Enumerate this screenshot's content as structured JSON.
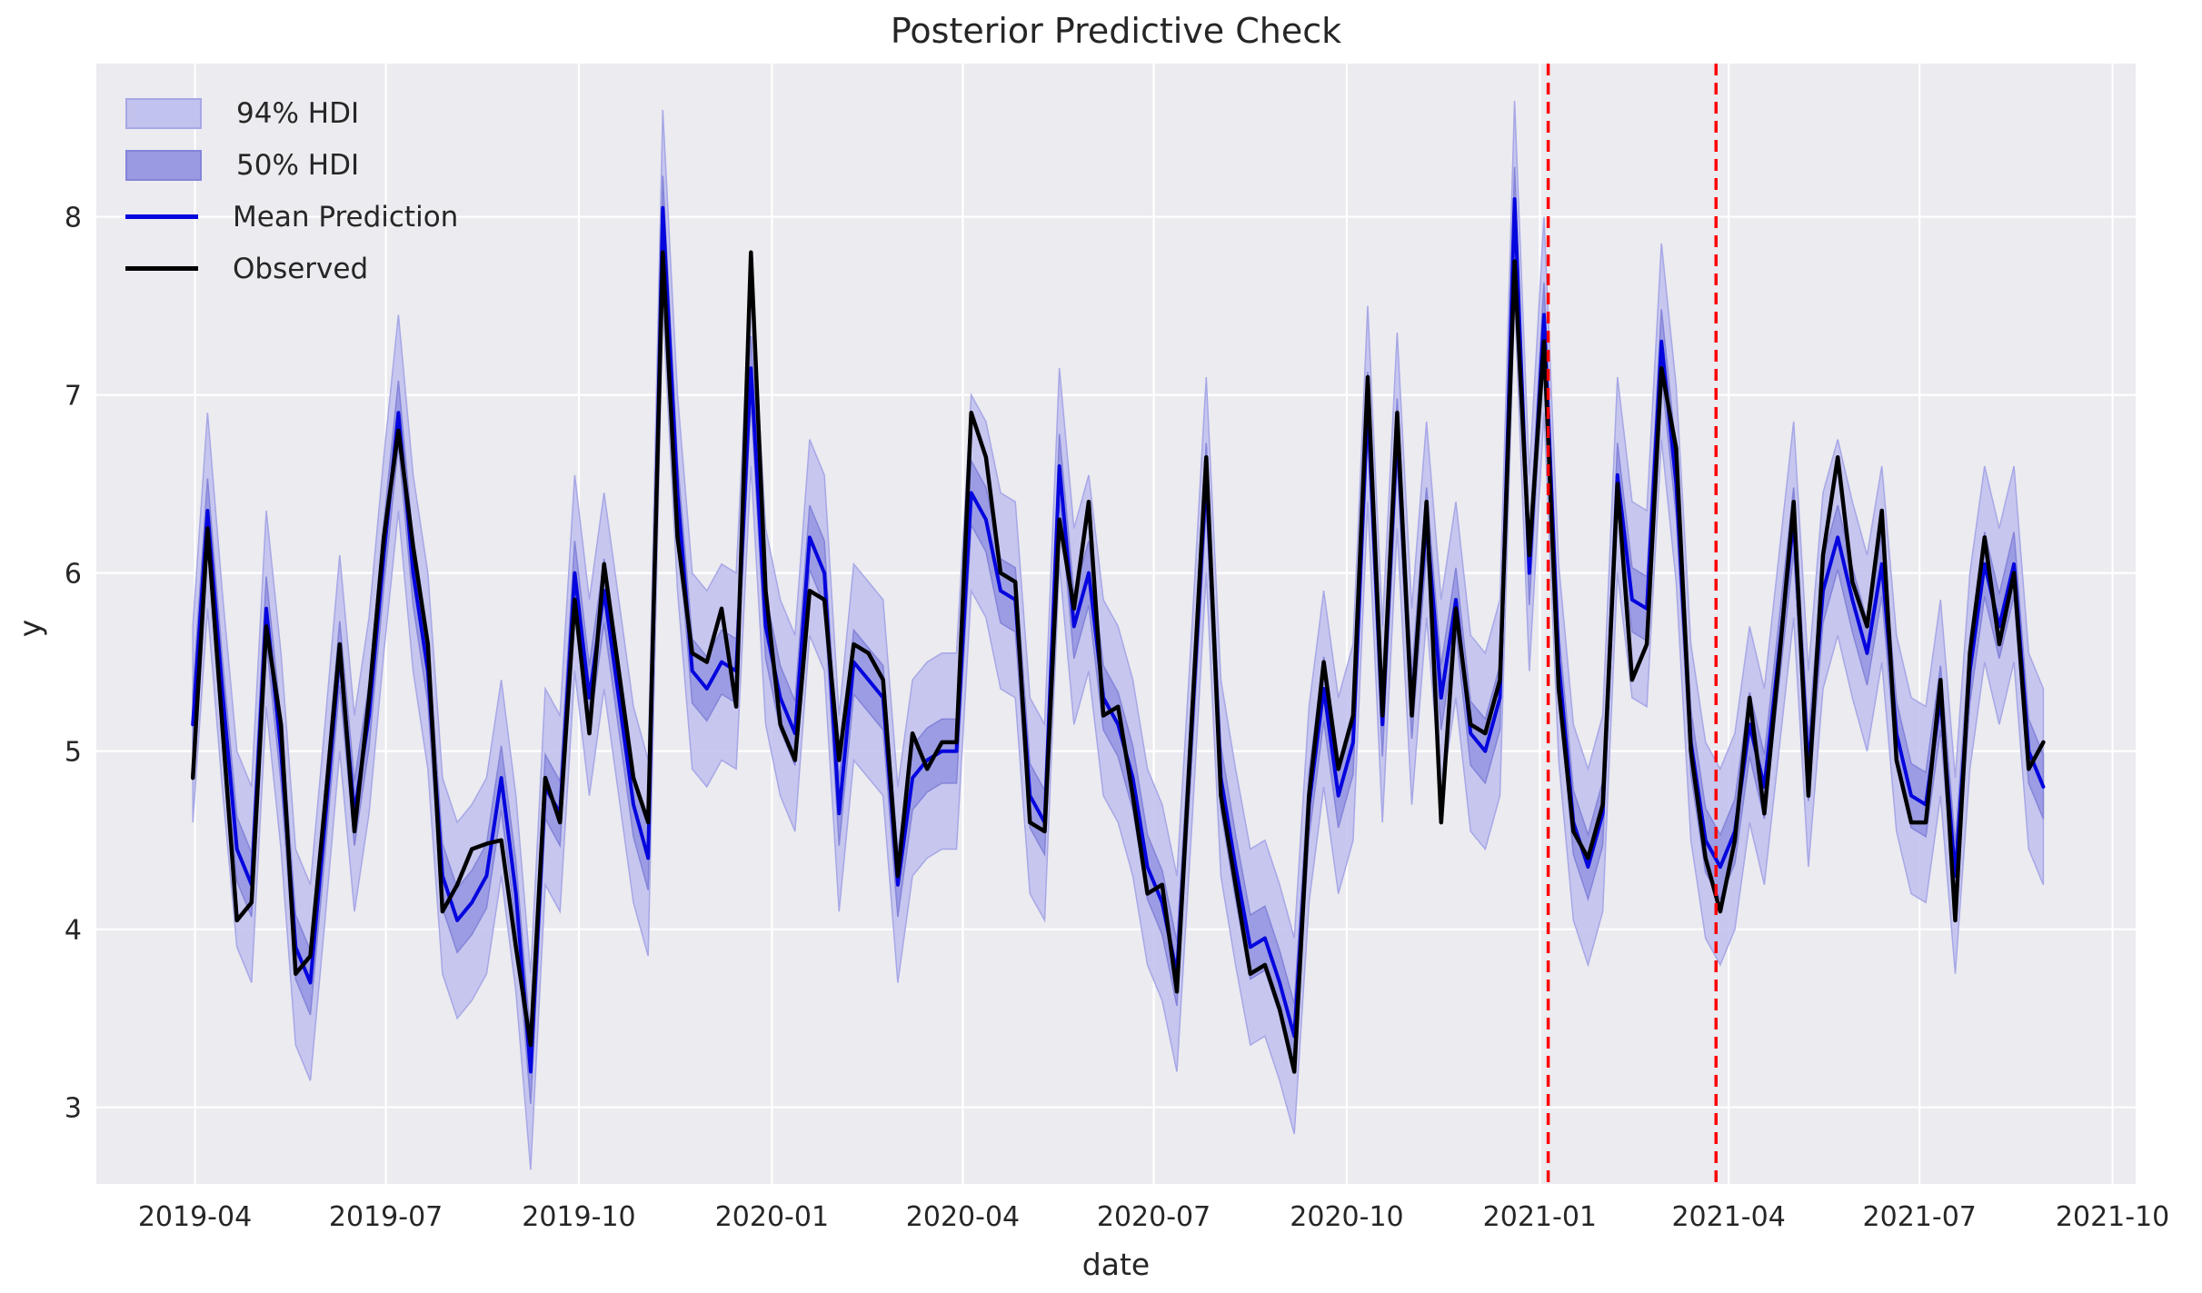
{
  "figure": {
    "title": "Posterior Predictive Check",
    "xlabel": "date",
    "ylabel": "y"
  },
  "colors": {
    "axes_background": "#ebebf0",
    "grid": "#ffffff",
    "hdi94_fill": "#c2c2ee",
    "hdi94_edge": "#a7a7e6",
    "hdi50_fill": "#9a9ae3",
    "hdi50_edge": "#8484d9",
    "mean_line": "#0505dd",
    "observed_line": "#000000",
    "vline": "#ff0000",
    "text": "#262626"
  },
  "legend": {
    "items": [
      {
        "label": "94% HDI",
        "swatch": "patch",
        "color_key": "hdi94_fill",
        "edge_key": "hdi94_edge"
      },
      {
        "label": "50% HDI",
        "swatch": "patch",
        "color_key": "hdi50_fill",
        "edge_key": "hdi50_edge"
      },
      {
        "label": "Mean Prediction",
        "swatch": "line",
        "color_key": "mean_line"
      },
      {
        "label": "Observed",
        "swatch": "line",
        "color_key": "observed_line"
      }
    ]
  },
  "chart_data": {
    "type": "line",
    "title": "Posterior Predictive Check",
    "xlabel": "date",
    "ylabel": "y",
    "xlim": [
      "2019-02-13",
      "2021-10-12"
    ],
    "ylim": [
      2.57,
      8.86
    ],
    "grid": true,
    "legend_position": "upper left",
    "x_ticks": [
      {
        "date": "2019-04-01",
        "label": "2019-04"
      },
      {
        "date": "2019-07-01",
        "label": "2019-07"
      },
      {
        "date": "2019-10-01",
        "label": "2019-10"
      },
      {
        "date": "2020-01-01",
        "label": "2020-01"
      },
      {
        "date": "2020-04-01",
        "label": "2020-04"
      },
      {
        "date": "2020-07-01",
        "label": "2020-07"
      },
      {
        "date": "2020-10-01",
        "label": "2020-10"
      },
      {
        "date": "2021-01-01",
        "label": "2021-01"
      },
      {
        "date": "2021-04-01",
        "label": "2021-04"
      },
      {
        "date": "2021-07-01",
        "label": "2021-07"
      },
      {
        "date": "2021-10-01",
        "label": "2021-10"
      }
    ],
    "y_ticks": [
      3,
      4,
      5,
      6,
      7,
      8
    ],
    "hdi94_halfwidth": 0.55,
    "hdi50_halfwidth": 0.18,
    "vlines": [
      {
        "date": "2021-01-05",
        "style": "dashed"
      },
      {
        "date": "2021-03-26",
        "style": "dashed"
      }
    ],
    "x": [
      "2019-03-31",
      "2019-04-07",
      "2019-04-14",
      "2019-04-21",
      "2019-04-28",
      "2019-05-05",
      "2019-05-12",
      "2019-05-19",
      "2019-05-26",
      "2019-06-02",
      "2019-06-09",
      "2019-06-16",
      "2019-06-23",
      "2019-06-30",
      "2019-07-07",
      "2019-07-14",
      "2019-07-21",
      "2019-07-28",
      "2019-08-04",
      "2019-08-11",
      "2019-08-18",
      "2019-08-25",
      "2019-09-01",
      "2019-09-08",
      "2019-09-15",
      "2019-09-22",
      "2019-09-29",
      "2019-10-06",
      "2019-10-13",
      "2019-10-20",
      "2019-10-27",
      "2019-11-03",
      "2019-11-10",
      "2019-11-17",
      "2019-11-24",
      "2019-12-01",
      "2019-12-08",
      "2019-12-15",
      "2019-12-22",
      "2019-12-29",
      "2020-01-05",
      "2020-01-12",
      "2020-01-19",
      "2020-01-26",
      "2020-02-02",
      "2020-02-09",
      "2020-02-16",
      "2020-02-23",
      "2020-03-01",
      "2020-03-08",
      "2020-03-15",
      "2020-03-22",
      "2020-03-29",
      "2020-04-05",
      "2020-04-12",
      "2020-04-19",
      "2020-04-26",
      "2020-05-03",
      "2020-05-10",
      "2020-05-17",
      "2020-05-24",
      "2020-05-31",
      "2020-06-07",
      "2020-06-14",
      "2020-06-21",
      "2020-06-28",
      "2020-07-05",
      "2020-07-12",
      "2020-07-19",
      "2020-07-26",
      "2020-08-02",
      "2020-08-09",
      "2020-08-16",
      "2020-08-23",
      "2020-08-30",
      "2020-09-06",
      "2020-09-13",
      "2020-09-20",
      "2020-09-27",
      "2020-10-04",
      "2020-10-11",
      "2020-10-18",
      "2020-10-25",
      "2020-11-01",
      "2020-11-08",
      "2020-11-15",
      "2020-11-22",
      "2020-11-29",
      "2020-12-06",
      "2020-12-13",
      "2020-12-20",
      "2020-12-27",
      "2021-01-03",
      "2021-01-10",
      "2021-01-17",
      "2021-01-24",
      "2021-01-31",
      "2021-02-07",
      "2021-02-14",
      "2021-02-21",
      "2021-02-28",
      "2021-03-07",
      "2021-03-14",
      "2021-03-21",
      "2021-03-28",
      "2021-04-04",
      "2021-04-11",
      "2021-04-18",
      "2021-04-25",
      "2021-05-02",
      "2021-05-09",
      "2021-05-16",
      "2021-05-23",
      "2021-05-30",
      "2021-06-06",
      "2021-06-13",
      "2021-06-20",
      "2021-06-27",
      "2021-07-04",
      "2021-07-11",
      "2021-07-18",
      "2021-07-25",
      "2021-08-01",
      "2021-08-08",
      "2021-08-15",
      "2021-08-22",
      "2021-08-29"
    ],
    "series": [
      {
        "name": "Observed",
        "values": [
          4.85,
          6.25,
          5.15,
          4.05,
          4.15,
          5.7,
          5.15,
          3.75,
          3.85,
          4.7,
          5.6,
          4.55,
          5.3,
          6.2,
          6.8,
          6.15,
          5.6,
          4.1,
          4.25,
          4.45,
          4.48,
          4.5,
          3.9,
          3.35,
          4.85,
          4.6,
          5.85,
          5.1,
          6.05,
          5.45,
          4.85,
          4.6,
          7.8,
          6.2,
          5.55,
          5.5,
          5.8,
          5.25,
          7.8,
          5.9,
          5.15,
          4.95,
          5.9,
          5.85,
          4.95,
          5.6,
          5.55,
          5.4,
          4.3,
          5.1,
          4.9,
          5.05,
          5.05,
          6.9,
          6.65,
          6.0,
          5.95,
          4.6,
          4.55,
          6.3,
          5.8,
          6.4,
          5.2,
          5.25,
          4.75,
          4.2,
          4.25,
          3.65,
          5.15,
          6.65,
          4.75,
          4.25,
          3.75,
          3.8,
          3.55,
          3.2,
          4.75,
          5.5,
          4.9,
          5.2,
          7.1,
          5.2,
          6.9,
          5.2,
          6.4,
          4.6,
          5.8,
          5.15,
          5.1,
          5.4,
          7.75,
          6.1,
          7.3,
          5.35,
          4.55,
          4.4,
          4.7,
          6.5,
          5.4,
          5.6,
          7.15,
          6.7,
          5.0,
          4.4,
          4.1,
          4.5,
          5.3,
          4.65,
          5.5,
          6.4,
          4.75,
          6.1,
          6.65,
          5.95,
          5.7,
          6.35,
          4.95,
          4.6,
          4.6,
          5.4,
          4.05,
          5.55,
          6.2,
          5.6,
          6.0,
          4.9,
          5.05
        ]
      },
      {
        "name": "Mean Prediction",
        "values": [
          5.15,
          6.35,
          5.35,
          4.45,
          4.25,
          5.8,
          5.0,
          3.9,
          3.7,
          4.6,
          5.55,
          4.65,
          5.2,
          6.1,
          6.9,
          6.0,
          5.45,
          4.3,
          4.05,
          4.15,
          4.3,
          4.85,
          4.2,
          3.2,
          4.8,
          4.65,
          6.0,
          5.3,
          5.9,
          5.3,
          4.7,
          4.4,
          8.05,
          6.45,
          5.45,
          5.35,
          5.5,
          5.45,
          7.15,
          5.7,
          5.3,
          5.1,
          6.2,
          6.0,
          4.65,
          5.5,
          5.4,
          5.3,
          4.25,
          4.85,
          4.95,
          5.0,
          5.0,
          6.45,
          6.3,
          5.9,
          5.85,
          4.75,
          4.6,
          6.6,
          5.7,
          6.0,
          5.3,
          5.15,
          4.85,
          4.35,
          4.15,
          3.75,
          5.1,
          6.55,
          4.85,
          4.35,
          3.9,
          3.95,
          3.7,
          3.4,
          4.7,
          5.35,
          4.75,
          5.05,
          6.95,
          5.15,
          6.8,
          5.25,
          6.3,
          5.3,
          5.85,
          5.1,
          5.0,
          5.3,
          8.1,
          6.0,
          7.45,
          5.5,
          4.6,
          4.35,
          4.65,
          6.55,
          5.85,
          5.8,
          7.3,
          6.5,
          5.05,
          4.5,
          4.35,
          4.55,
          5.15,
          4.8,
          5.55,
          6.3,
          4.9,
          5.9,
          6.2,
          5.85,
          5.55,
          6.05,
          5.1,
          4.75,
          4.7,
          5.3,
          4.3,
          5.45,
          6.05,
          5.7,
          6.05,
          5.0,
          4.8
        ]
      }
    ]
  }
}
